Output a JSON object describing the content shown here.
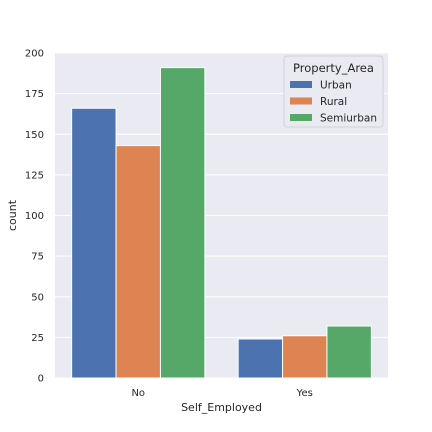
{
  "chart_data": {
    "type": "bar",
    "xlabel": "Self_Employed",
    "ylabel": "count",
    "categories": [
      "No",
      "Yes"
    ],
    "series": [
      {
        "name": "Urban",
        "values": [
          166,
          24
        ],
        "color": "#4c72b0"
      },
      {
        "name": "Rural",
        "values": [
          143,
          26
        ],
        "color": "#dd8452"
      },
      {
        "name": "Semiurban",
        "values": [
          191,
          32
        ],
        "color": "#55a868"
      }
    ],
    "ylim": [
      0,
      200
    ],
    "yticks": [
      0,
      25,
      50,
      75,
      100,
      125,
      150,
      175,
      200
    ],
    "legend": {
      "title": "Property_Area",
      "placement": "top-right"
    },
    "grid": true,
    "background_color": "#eaeaf2",
    "grid_color": "#ffffff"
  }
}
